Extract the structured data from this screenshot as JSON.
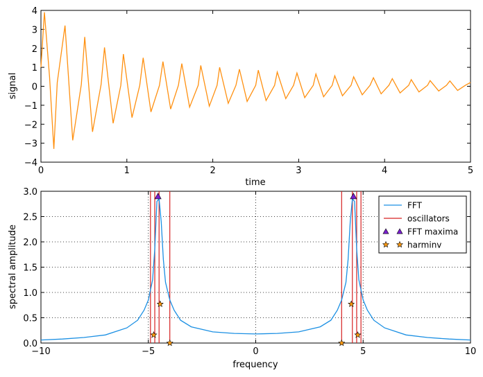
{
  "chart_data": [
    {
      "type": "line",
      "xlabel": "time",
      "ylabel": "signal",
      "xlim": [
        0,
        5
      ],
      "ylim": [
        -4,
        4
      ],
      "xticks": [
        "0",
        "1",
        "2",
        "3",
        "4",
        "5"
      ],
      "yticks": [
        "−4",
        "−3",
        "−2",
        "−1",
        "0",
        "1",
        "2",
        "3",
        "4"
      ],
      "grid": false,
      "series": [
        {
          "color": "#ff9010",
          "x": [
            0.0,
            0.04,
            0.1,
            0.15,
            0.19,
            0.28,
            0.37,
            0.47,
            0.51,
            0.6,
            0.7,
            0.74,
            0.84,
            0.93,
            0.96,
            1.06,
            1.15,
            1.19,
            1.28,
            1.38,
            1.42,
            1.51,
            1.6,
            1.64,
            1.73,
            1.83,
            1.86,
            1.96,
            2.05,
            2.08,
            2.18,
            2.27,
            2.31,
            2.4,
            2.5,
            2.53,
            2.62,
            2.72,
            2.75,
            2.85,
            2.94,
            2.98,
            3.07,
            3.17,
            3.2,
            3.29,
            3.39,
            3.42,
            3.51,
            3.61,
            3.64,
            3.74,
            3.83,
            3.87,
            3.96,
            4.05,
            4.09,
            4.18,
            4.28,
            4.31,
            4.4,
            4.5,
            4.53,
            4.63,
            4.72,
            4.76,
            4.85,
            4.94,
            5.0
          ],
          "y": [
            1.0,
            3.9,
            0.5,
            -3.3,
            0.2,
            3.2,
            -2.85,
            0.1,
            2.6,
            -2.4,
            0.1,
            2.05,
            -1.95,
            0.05,
            1.7,
            -1.65,
            0.05,
            1.5,
            -1.35,
            0.05,
            1.3,
            -1.2,
            0.05,
            1.2,
            -1.1,
            0.05,
            1.1,
            -1.05,
            0.05,
            1.0,
            -0.9,
            0.05,
            0.9,
            -0.8,
            0.05,
            0.85,
            -0.75,
            0.05,
            0.75,
            -0.65,
            0.05,
            0.7,
            -0.6,
            0.05,
            0.65,
            -0.55,
            0.05,
            0.55,
            -0.5,
            0.05,
            0.5,
            -0.45,
            0.05,
            0.45,
            -0.4,
            0.05,
            0.4,
            -0.35,
            0.05,
            0.35,
            -0.3,
            0.05,
            0.3,
            -0.25,
            0.05,
            0.28,
            -0.22,
            0.05,
            0.2
          ]
        }
      ]
    },
    {
      "type": "line",
      "xlabel": "frequency",
      "ylabel": "spectral amplitude",
      "xlim": [
        -10,
        10
      ],
      "ylim": [
        0,
        3
      ],
      "xticks": [
        "−10",
        "−5",
        "0",
        "5",
        "10"
      ],
      "yticks": [
        "0.0",
        "0.5",
        "1.0",
        "1.5",
        "2.0",
        "2.5",
        "3.0"
      ],
      "grid": true,
      "legend_position": "top-right",
      "legend": [
        {
          "label": "FFT",
          "kind": "line",
          "color": "#1a8fe3"
        },
        {
          "label": "oscillators",
          "kind": "vline",
          "color": "#d62020"
        },
        {
          "label": "FFT maxima",
          "kind": "triangle",
          "color": "#7a1fd0"
        },
        {
          "label": "harminv",
          "kind": "star",
          "color": "#ff9a10"
        }
      ],
      "series": [
        {
          "name": "FFT",
          "color": "#1a8fe3",
          "x": [
            -10,
            -9,
            -8,
            -7,
            -6,
            -5.5,
            -5.2,
            -5.0,
            -4.8,
            -4.7,
            -4.6,
            -4.5,
            -4.4,
            -4.3,
            -4.2,
            -4.0,
            -3.8,
            -3.5,
            -3.0,
            -2.0,
            -1.0,
            0,
            1.0,
            2.0,
            3.0,
            3.5,
            3.8,
            4.0,
            4.2,
            4.3,
            4.4,
            4.5,
            4.6,
            4.7,
            4.8,
            5.0,
            5.2,
            5.5,
            6,
            7,
            8,
            9,
            10
          ],
          "y": [
            0.06,
            0.08,
            0.11,
            0.16,
            0.3,
            0.45,
            0.65,
            0.85,
            1.25,
            1.85,
            2.8,
            2.85,
            2.4,
            1.65,
            1.2,
            0.85,
            0.65,
            0.45,
            0.32,
            0.22,
            0.19,
            0.18,
            0.19,
            0.22,
            0.32,
            0.45,
            0.65,
            0.85,
            1.2,
            1.65,
            2.4,
            2.85,
            2.8,
            1.85,
            1.25,
            0.85,
            0.65,
            0.45,
            0.3,
            0.16,
            0.11,
            0.08,
            0.06
          ]
        }
      ],
      "oscillators": [
        -4.9,
        -4.7,
        -4.5,
        -4.0,
        4.0,
        4.5,
        4.7,
        4.9
      ],
      "fft_maxima": [
        {
          "x": -4.55,
          "y": 2.9
        },
        {
          "x": 4.55,
          "y": 2.9
        }
      ],
      "harminv": [
        {
          "x": -4.75,
          "y": 0.16
        },
        {
          "x": -4.45,
          "y": 0.77
        },
        {
          "x": -4.0,
          "y": 0.0
        },
        {
          "x": 4.0,
          "y": 0.0
        },
        {
          "x": 4.45,
          "y": 0.77
        },
        {
          "x": 4.75,
          "y": 0.16
        }
      ]
    }
  ]
}
